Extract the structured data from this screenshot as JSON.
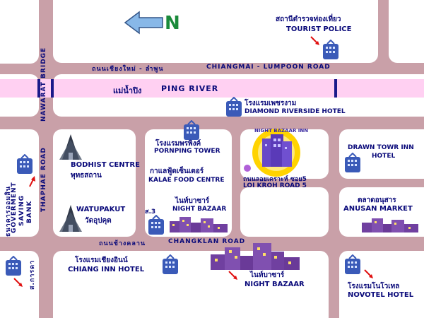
{
  "map": {
    "north_label": "N",
    "roads": {
      "chiangmai_thai": "ถนนเชียงใหม่ - ลำพูน",
      "chiangmai_en": "CHIANGMAI - LUMPOON ROAD",
      "river_thai": "แม่น้ำปิง",
      "river_en": "PING RIVER",
      "nawarat": "NAWARAT BRIDGE",
      "thaphae": "THAPHAE ROAD",
      "changklan_thai": "ถนนช้างคลาน",
      "changklan_en": "CHANGKLAN ROAD",
      "loikroh_thai": "ถนนลอยเคราะห์ ซอย5",
      "loikroh_en": "LOI KROH ROAD 5"
    },
    "places": {
      "tourist_police_thai": "สถานีตำรวจท่องเที่ยว",
      "tourist_police_en": "TOURIST POLICE",
      "diamond_thai": "โรงแรมเพชรงาม",
      "diamond_en": "DIAMOND RIVERSIDE HOTEL",
      "bodhist_en": "BODHIST CENTRE",
      "bodhist_thai": "พุทธสถาน",
      "pornping_thai": "โรงแรมพรพิงค์",
      "pornping_en": "PORNPING TOWER",
      "kalae_thai": "กาแลฟู้ดเซ็นเตอร์",
      "kalae_en": "KALAE FOOD CENTRE",
      "night_bazaar_inn": "NIGHT BAZAAR INN",
      "drawn_tower": "DRAWN TOWR INN",
      "drawn_hotel": "HOTEL",
      "anusan_thai": "ตลาดอนุสาร",
      "anusan_en": "ANUSAN MARKET",
      "gsb_thai": "ธนาคารออมสิน",
      "gsb_en1": "GOVERMENT",
      "gsb_en2": "SAVING",
      "gsb_en3": "BANK",
      "watupakut_en": "WATUPAKUT",
      "watupakut_thai": "วัดอุปคุต",
      "s3": "ส.3",
      "night_bazaar_small_thai": "ไนท์บาซาร์",
      "night_bazaar_small_en": "NIGHT BAZAAR",
      "chiang_inn_thai": "โรงแรมเชียงอินน์",
      "chiang_inn_en": "CHIANG INN HOTEL",
      "night_bazaar_big_thai": "ไนท์บาซาร์",
      "night_bazaar_big_en": "NIGHT BAZAAR",
      "novotel_thai": "โรงแรมโนโวเทล",
      "novotel_en": "NOVOTEL HOTEL",
      "sakarnda": "ส.การดา"
    },
    "colors": {
      "road": "#c9a0a8",
      "block": "#ffffff",
      "river": "#ffd0f2",
      "text": "#0a0a7a",
      "marker": "#e01010",
      "building": "#7040a0"
    }
  }
}
